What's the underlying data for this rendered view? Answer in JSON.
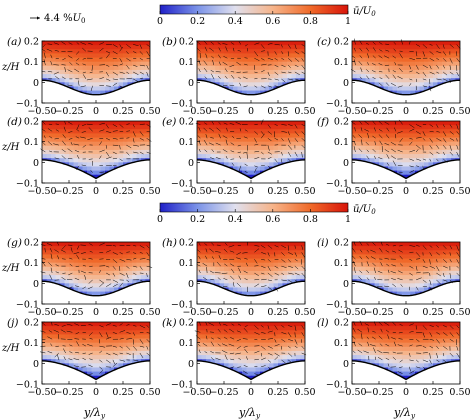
{
  "chart_data": {
    "type": "heatmap",
    "reference_vector": {
      "label": "4.4 %U0",
      "label_main": "4.4 %",
      "label_sub": "0"
    },
    "colorbars": [
      {
        "label": "ū/U",
        "label_sub": "0",
        "ticks": [
          0,
          0.2,
          0.4,
          0.6,
          0.8,
          1
        ],
        "range": [
          0,
          1
        ],
        "colors": [
          "#2020c8",
          "#7b93e8",
          "#e0e0ee",
          "#f6b48a",
          "#f06a2a",
          "#d8140a"
        ]
      },
      {
        "label": "ū/U",
        "label_sub": "0",
        "ticks": [
          0,
          0.2,
          0.4,
          0.6,
          0.8,
          1
        ],
        "range": [
          0,
          1
        ],
        "colors": [
          "#2020c8",
          "#7b93e8",
          "#e0e0ee",
          "#f6b48a",
          "#f06a2a",
          "#d8140a"
        ]
      }
    ],
    "xlabel": "y/λ",
    "xlabel_sub": "y",
    "ylabel": "z/H",
    "xlim": [
      -0.5,
      0.5
    ],
    "ylim": [
      -0.1,
      0.2
    ],
    "xticks": [
      "−0.50",
      "−0.25",
      "0",
      "0.25",
      "0.50"
    ],
    "yticks": [
      "0.2",
      "0.1",
      "0",
      "−0.1"
    ],
    "panels": [
      {
        "label": "(a)",
        "depth": 0.07,
        "shape": "smooth"
      },
      {
        "label": "(b)",
        "depth": 0.07,
        "shape": "smooth"
      },
      {
        "label": "(c)",
        "depth": 0.07,
        "shape": "smooth"
      },
      {
        "label": "(d)",
        "depth": 0.09,
        "shape": "cusp"
      },
      {
        "label": "(e)",
        "depth": 0.09,
        "shape": "cusp"
      },
      {
        "label": "(f)",
        "depth": 0.09,
        "shape": "cusp"
      },
      {
        "label": "(g)",
        "depth": 0.07,
        "shape": "smooth"
      },
      {
        "label": "(h)",
        "depth": 0.07,
        "shape": "smooth"
      },
      {
        "label": "(i)",
        "depth": 0.07,
        "shape": "smooth"
      },
      {
        "label": "(j)",
        "depth": 0.09,
        "shape": "cusp"
      },
      {
        "label": "(k)",
        "depth": 0.09,
        "shape": "cusp"
      },
      {
        "label": "(l)",
        "depth": 0.09,
        "shape": "cusp"
      }
    ]
  }
}
